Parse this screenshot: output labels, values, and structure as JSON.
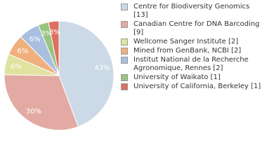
{
  "chart_data": {
    "type": "pie",
    "categories": [
      "Centre for Biodiversity Genomics [13]",
      "Canadian Centre for DNA Barcoding [9]",
      "Wellcome Sanger Institute [2]",
      "Mined from GenBank, NCBI [2]",
      "Institut National de la Recherche Agronomique, Rennes [2]",
      "University of Waikato [1]",
      "University of California, Berkeley [1]"
    ],
    "values": [
      43,
      30,
      6,
      6,
      6,
      3,
      3
    ],
    "value_labels": [
      "43%",
      "30%",
      "6%",
      "6%",
      "6%",
      "3%",
      "3%"
    ],
    "colors": [
      "#ccd9e6",
      "#e2aaa2",
      "#e0e3a0",
      "#efb07e",
      "#a9bfe0",
      "#98c47f",
      "#de705e"
    ]
  }
}
